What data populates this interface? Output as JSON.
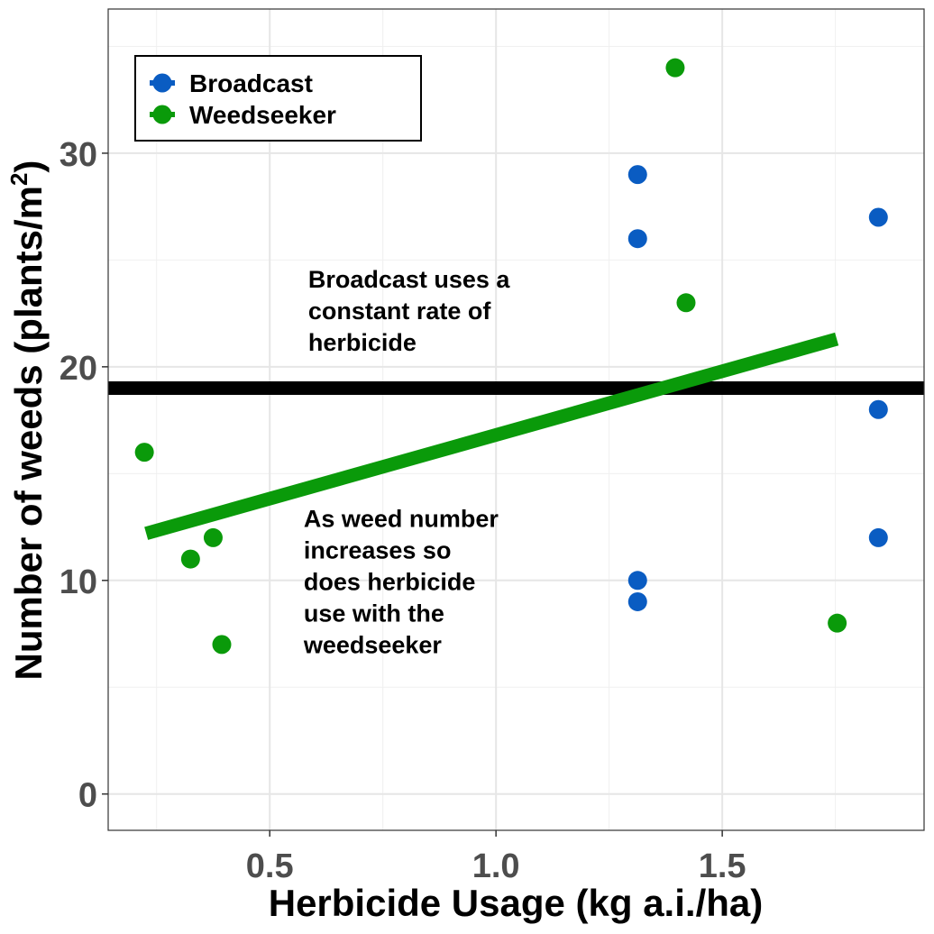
{
  "chart_data": {
    "type": "scatter",
    "xlabel": "Herbicide Usage (kg a.i./ha)",
    "ylabel_main": "Number of weeds (plants/m",
    "ylabel_sup": "2",
    "ylabel_close": ")",
    "xlim": [
      0.143,
      1.946
    ],
    "ylim": [
      -1.7,
      36.75
    ],
    "x_ticks": [
      0.5,
      1.0,
      1.5
    ],
    "x_tick_labels": [
      "0.5",
      "1.0",
      "1.5"
    ],
    "y_ticks": [
      0,
      10,
      20,
      30
    ],
    "y_tick_labels": [
      "0",
      "10",
      "20",
      "30"
    ],
    "grid": true,
    "legend_position": "top-left",
    "series": [
      {
        "name": "Broadcast",
        "color": "#0a5cc2",
        "points": [
          [
            1.313,
            29
          ],
          [
            1.313,
            26
          ],
          [
            1.313,
            10
          ],
          [
            1.313,
            9
          ],
          [
            1.845,
            27
          ],
          [
            1.845,
            18
          ],
          [
            1.845,
            12
          ]
        ]
      },
      {
        "name": "Weedseeker",
        "color": "#0a9a0a",
        "points": [
          [
            1.396,
            34
          ],
          [
            1.42,
            23
          ],
          [
            0.223,
            16
          ],
          [
            0.325,
            11
          ],
          [
            0.375,
            12
          ],
          [
            0.394,
            7
          ],
          [
            1.754,
            8
          ]
        ]
      }
    ],
    "lines": [
      {
        "label": "broadcast-constant-rate",
        "color": "#000000",
        "x": [
          0.143,
          1.946
        ],
        "y": [
          19,
          19
        ]
      },
      {
        "label": "weedseeker-trend",
        "color": "#0a9a0a",
        "x": [
          0.227,
          1.753
        ],
        "y": [
          12.2,
          21.3
        ]
      }
    ],
    "annotations": [
      {
        "lines": [
          "Broadcast uses a",
          "constant rate of",
          "herbicide"
        ],
        "x": 0.585,
        "y": 23.7
      },
      {
        "lines": [
          "As weed number",
          "increases so",
          "does herbicide",
          "use with the",
          "weedseeker"
        ],
        "x": 0.575,
        "y": 12.5
      }
    ]
  }
}
